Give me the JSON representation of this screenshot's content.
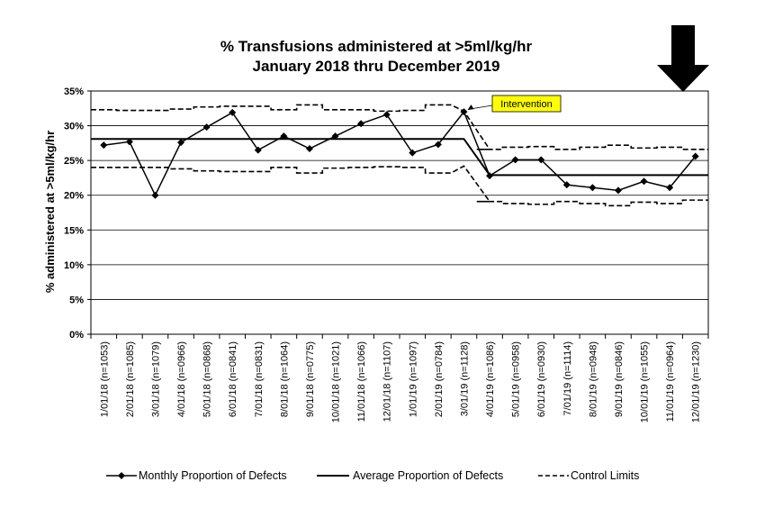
{
  "chart_data": {
    "type": "line",
    "title": "% Transfusions administered at >5ml/kg/hr",
    "subtitle": "January 2018 thru December 2019",
    "ylabel": "% administered at >5ml/kg/hr",
    "xlabel": "",
    "ylim": [
      0,
      35
    ],
    "yticks": [
      "0%",
      "5%",
      "10%",
      "15%",
      "20%",
      "25%",
      "30%",
      "35%"
    ],
    "grid": true,
    "legend_position": "bottom",
    "categories": [
      "1/01/18 (n=1053)",
      "2/01/18 (n=1085)",
      "3/01/18 (n=1079)",
      "4/01/18 (n=0966)",
      "5/01/18 (n=0868)",
      "6/01/18 (n=0841)",
      "7/01/18 (n=0831)",
      "8/01/18 (n=1064)",
      "9/01/18 (n=0775)",
      "10/01/18 (n=1021)",
      "11/01/18 (n=1066)",
      "12/01/18 (n=1107)",
      "1/01/19 (n=1097)",
      "2/01/19 (n=0784)",
      "3/01/19 (n=1128)",
      "4/01/19 (n=1086)",
      "5/01/19 (n=0958)",
      "6/01/19 (n=0930)",
      "7/01/19 (n=1114)",
      "8/01/19 (n=0948)",
      "9/01/19 (n=0846)",
      "10/01/19 (n=1055)",
      "11/01/19 (n=0964)",
      "12/01/19 (n=1230)"
    ],
    "series": [
      {
        "name": "Monthly Proportion of Defects",
        "style": "line-with-diamond-markers",
        "values": [
          27.2,
          27.7,
          20.0,
          27.6,
          29.8,
          31.9,
          26.5,
          28.5,
          26.7,
          28.5,
          30.3,
          31.6,
          26.1,
          27.3,
          32.0,
          22.8,
          25.1,
          25.1,
          21.5,
          21.1,
          20.7,
          22.0,
          21.1,
          25.6
        ]
      },
      {
        "name": "Average Proportion of Defects",
        "style": "solid",
        "values": [
          28.1,
          28.1,
          28.1,
          28.1,
          28.1,
          28.1,
          28.1,
          28.1,
          28.1,
          28.1,
          28.1,
          28.1,
          28.1,
          28.1,
          28.1,
          22.9,
          22.9,
          22.9,
          22.9,
          22.9,
          22.9,
          22.9,
          22.9,
          22.9
        ]
      },
      {
        "name": "Control Limits",
        "style": "dashed",
        "upper": [
          32.3,
          32.2,
          32.2,
          32.4,
          32.7,
          32.8,
          32.8,
          32.3,
          33.0,
          32.3,
          32.3,
          32.1,
          32.2,
          33.0,
          32.1,
          26.6,
          26.9,
          27.0,
          26.6,
          26.9,
          27.2,
          26.8,
          26.9,
          26.6
        ],
        "lower": [
          24.0,
          24.0,
          24.0,
          23.8,
          23.5,
          23.4,
          23.4,
          24.0,
          23.2,
          23.9,
          24.0,
          24.1,
          24.0,
          23.2,
          24.2,
          19.1,
          18.8,
          18.7,
          19.1,
          18.8,
          18.5,
          19.0,
          18.8,
          19.3
        ]
      }
    ],
    "annotations": [
      {
        "text": "Intervention",
        "at_category": "3/01/19 (n=1128)",
        "color": "#ffff00"
      }
    ],
    "colors": {
      "series": "#000000",
      "annotation_fill": "#ffff00",
      "grid": "#000000"
    },
    "icons": [
      "down-arrow-icon"
    ]
  }
}
